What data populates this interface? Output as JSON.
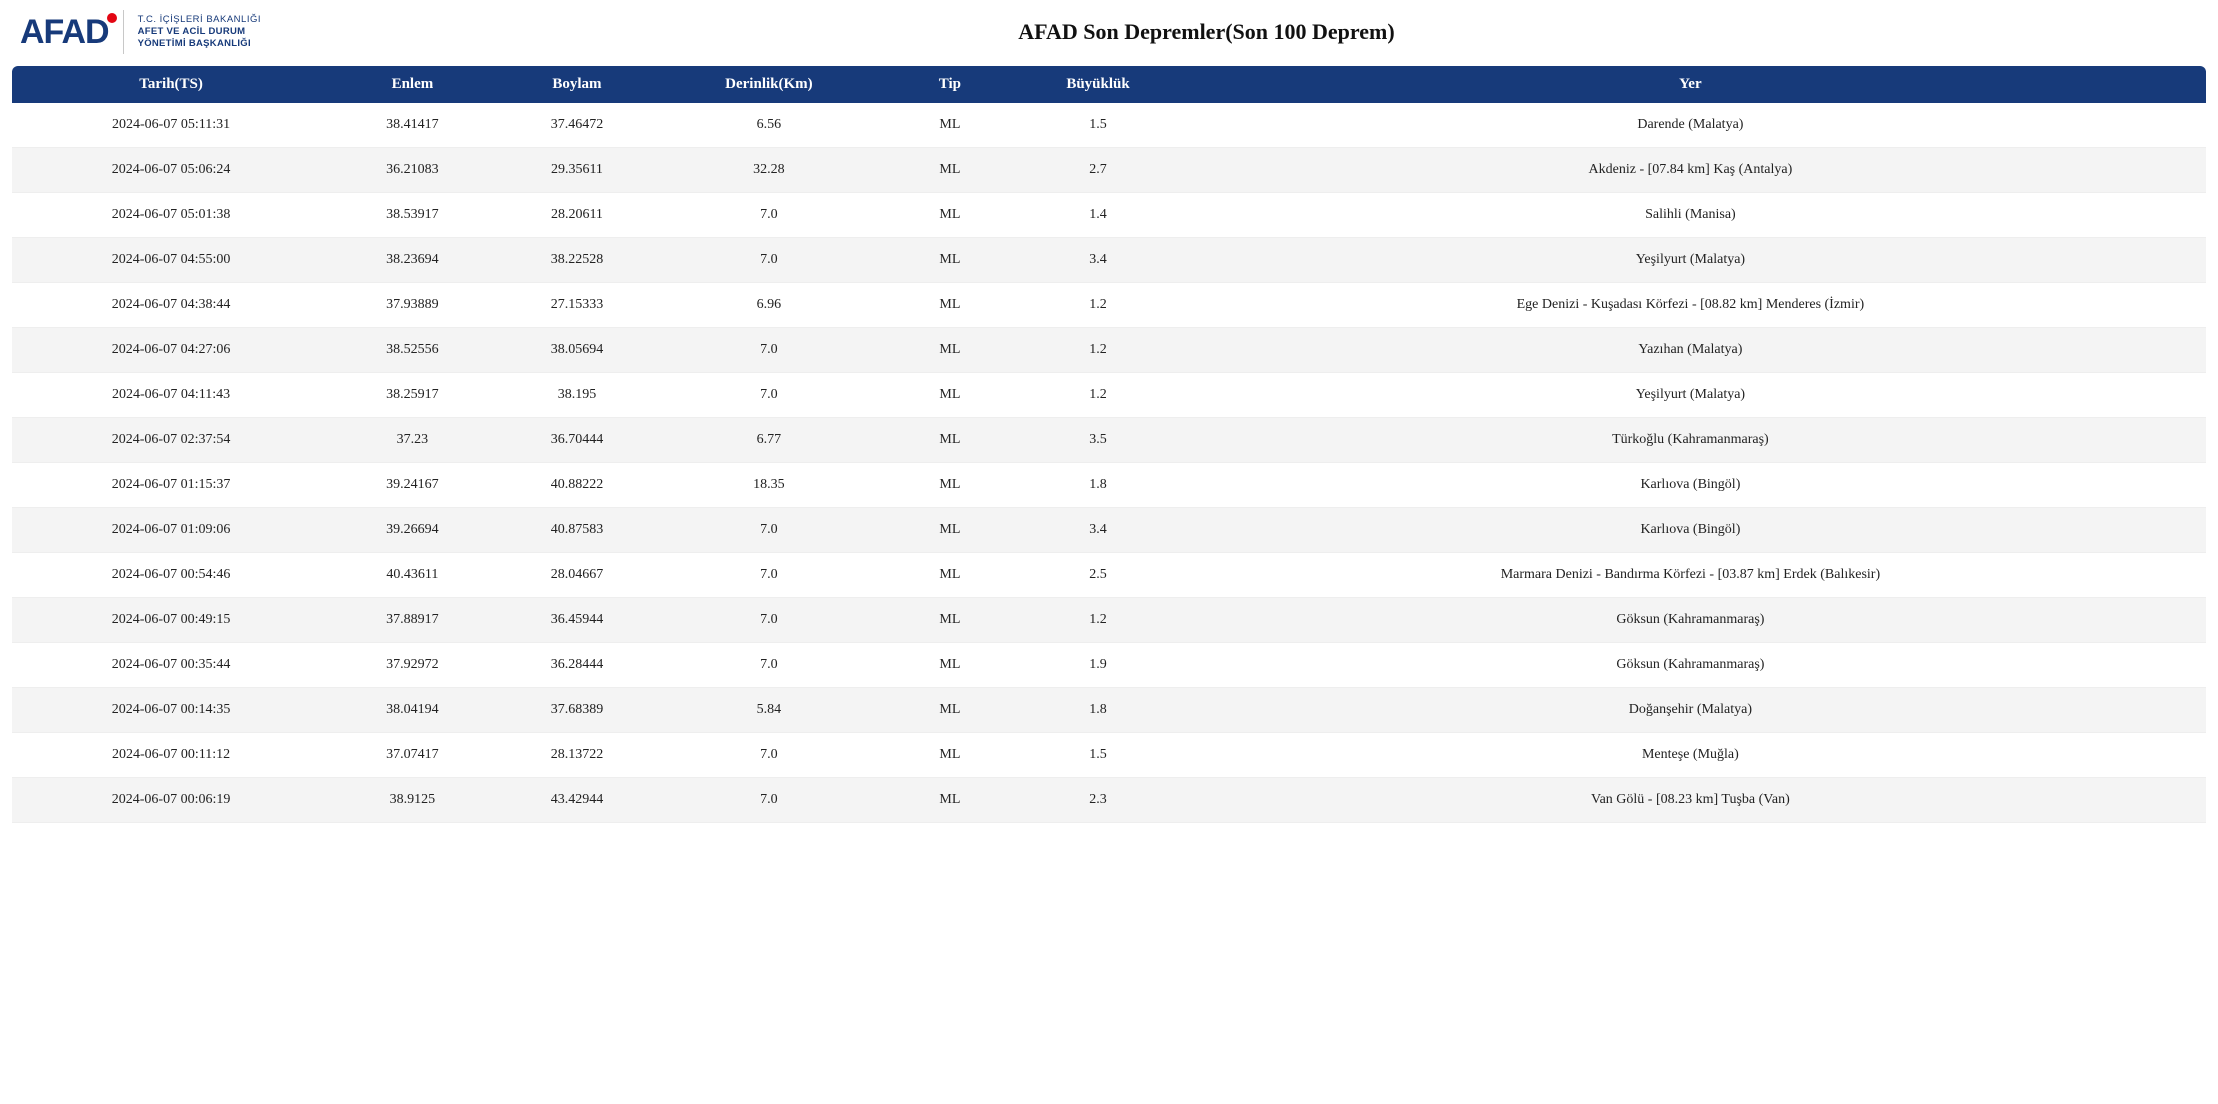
{
  "header": {
    "logo_primary": "AFAD",
    "logo_sub_line1": "T.C. İÇİŞLERİ BAKANLIĞI",
    "logo_sub_line2": "AFET VE ACİL DURUM",
    "logo_sub_line3": "YÖNETİMİ BAŞKANLIĞI",
    "page_title": "AFAD Son Depremler(Son 100 Deprem)"
  },
  "colors": {
    "header_bg": "#173a7a",
    "header_text": "#ffffff",
    "row_alt_bg": "#f4f4f4",
    "text": "#222222",
    "accent_red": "#e30613"
  },
  "table": {
    "columns": [
      {
        "key": "date",
        "label": "Tarih(TS)"
      },
      {
        "key": "lat",
        "label": "Enlem"
      },
      {
        "key": "lon",
        "label": "Boylam"
      },
      {
        "key": "depth",
        "label": "Derinlik(Km)"
      },
      {
        "key": "type",
        "label": "Tip"
      },
      {
        "key": "mag",
        "label": "Büyüklük"
      },
      {
        "key": "loc",
        "label": "Yer"
      }
    ],
    "rows": [
      {
        "date": "2024-06-07 05:11:31",
        "lat": "38.41417",
        "lon": "37.46472",
        "depth": "6.56",
        "type": "ML",
        "mag": "1.5",
        "loc": "Darende (Malatya)"
      },
      {
        "date": "2024-06-07 05:06:24",
        "lat": "36.21083",
        "lon": "29.35611",
        "depth": "32.28",
        "type": "ML",
        "mag": "2.7",
        "loc": "Akdeniz - [07.84 km] Kaş (Antalya)"
      },
      {
        "date": "2024-06-07 05:01:38",
        "lat": "38.53917",
        "lon": "28.20611",
        "depth": "7.0",
        "type": "ML",
        "mag": "1.4",
        "loc": "Salihli (Manisa)"
      },
      {
        "date": "2024-06-07 04:55:00",
        "lat": "38.23694",
        "lon": "38.22528",
        "depth": "7.0",
        "type": "ML",
        "mag": "3.4",
        "loc": "Yeşilyurt (Malatya)"
      },
      {
        "date": "2024-06-07 04:38:44",
        "lat": "37.93889",
        "lon": "27.15333",
        "depth": "6.96",
        "type": "ML",
        "mag": "1.2",
        "loc": "Ege Denizi - Kuşadası Körfezi - [08.82 km] Menderes (İzmir)"
      },
      {
        "date": "2024-06-07 04:27:06",
        "lat": "38.52556",
        "lon": "38.05694",
        "depth": "7.0",
        "type": "ML",
        "mag": "1.2",
        "loc": "Yazıhan (Malatya)"
      },
      {
        "date": "2024-06-07 04:11:43",
        "lat": "38.25917",
        "lon": "38.195",
        "depth": "7.0",
        "type": "ML",
        "mag": "1.2",
        "loc": "Yeşilyurt (Malatya)"
      },
      {
        "date": "2024-06-07 02:37:54",
        "lat": "37.23",
        "lon": "36.70444",
        "depth": "6.77",
        "type": "ML",
        "mag": "3.5",
        "loc": "Türkoğlu (Kahramanmaraş)"
      },
      {
        "date": "2024-06-07 01:15:37",
        "lat": "39.24167",
        "lon": "40.88222",
        "depth": "18.35",
        "type": "ML",
        "mag": "1.8",
        "loc": "Karlıova (Bingöl)"
      },
      {
        "date": "2024-06-07 01:09:06",
        "lat": "39.26694",
        "lon": "40.87583",
        "depth": "7.0",
        "type": "ML",
        "mag": "3.4",
        "loc": "Karlıova (Bingöl)"
      },
      {
        "date": "2024-06-07 00:54:46",
        "lat": "40.43611",
        "lon": "28.04667",
        "depth": "7.0",
        "type": "ML",
        "mag": "2.5",
        "loc": "Marmara Denizi - Bandırma Körfezi - [03.87 km] Erdek (Balıkesir)"
      },
      {
        "date": "2024-06-07 00:49:15",
        "lat": "37.88917",
        "lon": "36.45944",
        "depth": "7.0",
        "type": "ML",
        "mag": "1.2",
        "loc": "Göksun (Kahramanmaraş)"
      },
      {
        "date": "2024-06-07 00:35:44",
        "lat": "37.92972",
        "lon": "36.28444",
        "depth": "7.0",
        "type": "ML",
        "mag": "1.9",
        "loc": "Göksun (Kahramanmaraş)"
      },
      {
        "date": "2024-06-07 00:14:35",
        "lat": "38.04194",
        "lon": "37.68389",
        "depth": "5.84",
        "type": "ML",
        "mag": "1.8",
        "loc": "Doğanşehir (Malatya)"
      },
      {
        "date": "2024-06-07 00:11:12",
        "lat": "37.07417",
        "lon": "28.13722",
        "depth": "7.0",
        "type": "ML",
        "mag": "1.5",
        "loc": "Menteşe (Muğla)"
      },
      {
        "date": "2024-06-07 00:06:19",
        "lat": "38.9125",
        "lon": "43.42944",
        "depth": "7.0",
        "type": "ML",
        "mag": "2.3",
        "loc": "Van Gölü - [08.23 km] Tuşba (Van)"
      }
    ]
  }
}
